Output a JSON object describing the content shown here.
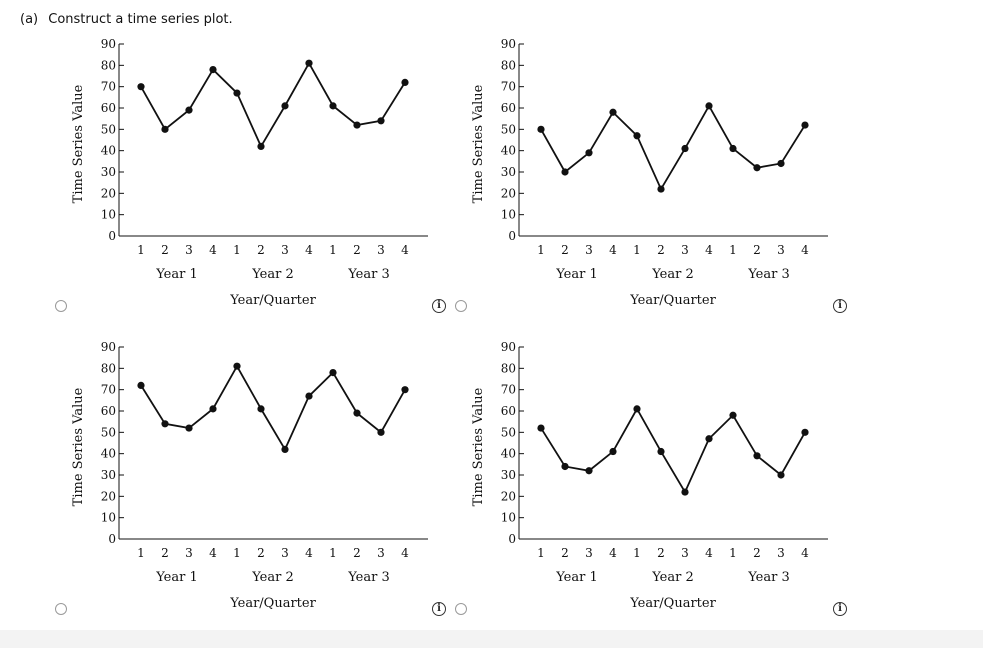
{
  "question": {
    "part": "(a)",
    "text": "Construct a time series plot."
  },
  "info_glyph": "i",
  "chart_data": [
    {
      "type": "line",
      "option": 1,
      "categories": [
        "1",
        "2",
        "3",
        "4",
        "1",
        "2",
        "3",
        "4",
        "1",
        "2",
        "3",
        "4"
      ],
      "values": [
        70,
        50,
        59,
        78,
        67,
        42,
        61,
        81,
        61,
        52,
        54,
        72
      ],
      "groups": [
        "Year 1",
        "Year 2",
        "Year 3"
      ],
      "xlabel": "Year/Quarter",
      "ylabel": "Time Series Value",
      "ylim": [
        0,
        90
      ],
      "yticks": [
        0,
        10,
        20,
        30,
        40,
        50,
        60,
        70,
        80,
        90
      ]
    },
    {
      "type": "line",
      "option": 2,
      "categories": [
        "1",
        "2",
        "3",
        "4",
        "1",
        "2",
        "3",
        "4",
        "1",
        "2",
        "3",
        "4"
      ],
      "values": [
        50,
        30,
        39,
        58,
        47,
        22,
        41,
        61,
        41,
        32,
        34,
        52
      ],
      "groups": [
        "Year 1",
        "Year 2",
        "Year 3"
      ],
      "xlabel": "Year/Quarter",
      "ylabel": "Time Series Value",
      "ylim": [
        0,
        90
      ],
      "yticks": [
        0,
        10,
        20,
        30,
        40,
        50,
        60,
        70,
        80,
        90
      ]
    },
    {
      "type": "line",
      "option": 3,
      "categories": [
        "1",
        "2",
        "3",
        "4",
        "1",
        "2",
        "3",
        "4",
        "1",
        "2",
        "3",
        "4"
      ],
      "values": [
        72,
        54,
        52,
        61,
        81,
        61,
        42,
        67,
        78,
        59,
        50,
        70
      ],
      "groups": [
        "Year 1",
        "Year 2",
        "Year 3"
      ],
      "xlabel": "Year/Quarter",
      "ylabel": "Time Series Value",
      "ylim": [
        0,
        90
      ],
      "yticks": [
        0,
        10,
        20,
        30,
        40,
        50,
        60,
        70,
        80,
        90
      ]
    },
    {
      "type": "line",
      "option": 4,
      "categories": [
        "1",
        "2",
        "3",
        "4",
        "1",
        "2",
        "3",
        "4",
        "1",
        "2",
        "3",
        "4"
      ],
      "values": [
        52,
        34,
        32,
        41,
        61,
        41,
        22,
        47,
        58,
        39,
        30,
        50
      ],
      "groups": [
        "Year 1",
        "Year 2",
        "Year 3"
      ],
      "xlabel": "Year/Quarter",
      "ylabel": "Time Series Value",
      "ylim": [
        0,
        90
      ],
      "yticks": [
        0,
        10,
        20,
        30,
        40,
        50,
        60,
        70,
        80,
        90
      ]
    }
  ]
}
